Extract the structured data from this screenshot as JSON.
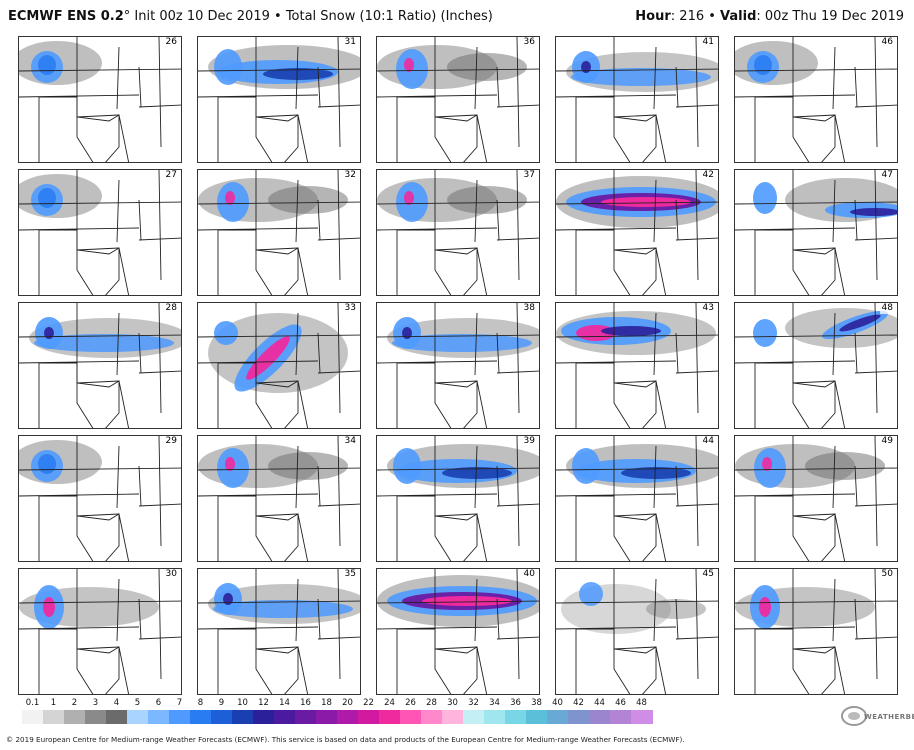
{
  "header": {
    "model": "ECMWF ENS 0.2",
    "degree": "°",
    "init": " Init 00z 10 Dec 2019",
    "bullet": " • ",
    "product": "Total Snow (10:1 Ratio) (Inches)",
    "hour_label": "Hour",
    "hour_value": ": 216",
    "valid_label": "Valid",
    "valid_value": ": 00z Thu 19 Dec 2019"
  },
  "members": [
    {
      "id": "26",
      "style": "w1"
    },
    {
      "id": "31",
      "style": "band1"
    },
    {
      "id": "36",
      "style": "w2"
    },
    {
      "id": "41",
      "style": "band2"
    },
    {
      "id": "46",
      "style": "w1"
    },
    {
      "id": "27",
      "style": "w1"
    },
    {
      "id": "32",
      "style": "w2"
    },
    {
      "id": "37",
      "style": "w2"
    },
    {
      "id": "42",
      "style": "bigband"
    },
    {
      "id": "47",
      "style": "east"
    },
    {
      "id": "28",
      "style": "band2"
    },
    {
      "id": "33",
      "style": "diag"
    },
    {
      "id": "38",
      "style": "band2"
    },
    {
      "id": "43",
      "style": "nband"
    },
    {
      "id": "48",
      "style": "ne"
    },
    {
      "id": "29",
      "style": "w1"
    },
    {
      "id": "34",
      "style": "w2"
    },
    {
      "id": "39",
      "style": "band1"
    },
    {
      "id": "44",
      "style": "band1"
    },
    {
      "id": "49",
      "style": "w2"
    },
    {
      "id": "30",
      "style": "w3"
    },
    {
      "id": "35",
      "style": "band2"
    },
    {
      "id": "40",
      "style": "bigband"
    },
    {
      "id": "45",
      "style": "light"
    },
    {
      "id": "50",
      "style": "w3"
    }
  ],
  "colorbar": {
    "labels": [
      "0.1",
      "1",
      "2",
      "3",
      "4",
      "5",
      "6",
      "7",
      "8",
      "9",
      "10",
      "12",
      "14",
      "16",
      "18",
      "20",
      "22",
      "24",
      "26",
      "28",
      "30",
      "32",
      "34",
      "36",
      "38",
      "40",
      "42",
      "44",
      "46",
      "48"
    ],
    "colors": [
      "#f2f2f2",
      "#d4d4d4",
      "#b0b0b0",
      "#8a8a8a",
      "#6b6b6b",
      "#a9d4ff",
      "#7cb8ff",
      "#4e9aff",
      "#2a7cf2",
      "#1c5fd6",
      "#1a3fb0",
      "#2b1f9a",
      "#4b1a9e",
      "#6a1aa3",
      "#8c1aa8",
      "#b01aa8",
      "#d11aa0",
      "#ef2a9e",
      "#ff55b5",
      "#ff88cc",
      "#ffb4dd",
      "#c4f0f5",
      "#9fe6ee",
      "#79d6e6",
      "#5cbfd9",
      "#69a9d6",
      "#7f94cf",
      "#9a86cf",
      "#b384d6",
      "#cf8de6"
    ]
  },
  "logo": "WEATHERBELL",
  "footer": "© 2019 European Centre for Medium-range Weather Forecasts (ECMWF). This service is based on data and products of the European Centre for Medium-range Weather Forecasts (ECMWF)."
}
